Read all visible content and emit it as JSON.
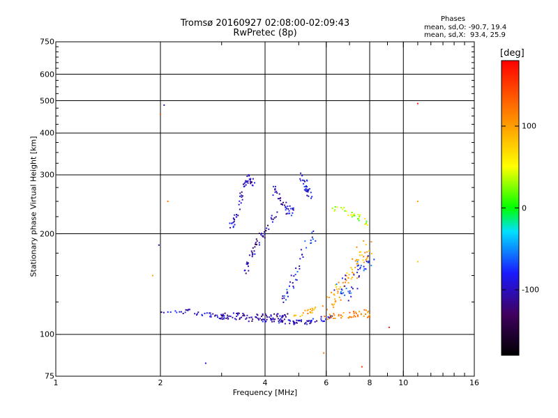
{
  "title_line1": "Tromsø 20160927 02:08:00-02:09:43",
  "title_line2": "RwPretec (8p)",
  "phase_legend": {
    "heading": "Phases",
    "o_line": "mean, sd,O: -90.7, 19.4",
    "x_line": "mean, sd,X:  93.4, 25.9"
  },
  "colorbar": {
    "unit": "[deg]",
    "ticks": [
      "100",
      "0",
      "-100"
    ],
    "tick_values": [
      100,
      0,
      -100
    ],
    "range": [
      -180,
      180
    ],
    "colors": [
      "#000000",
      "#400060",
      "#1a1aff",
      "#00e0ff",
      "#00ff00",
      "#ffff00",
      "#ff8000",
      "#ff0000"
    ]
  },
  "chart_data": {
    "type": "scatter",
    "title": "Tromsø 20160927 02:08:00-02:09:43",
    "subtitle": "RwPretec (8p)",
    "xlabel": "Frequency [MHz]",
    "ylabel": "Stationary phase Virtual Height [km]",
    "x_scale": "log",
    "y_scale": "log",
    "xlim": [
      1,
      16
    ],
    "ylim": [
      75,
      750
    ],
    "x_ticks": [
      "1",
      "2",
      "4",
      "6",
      "8",
      "10",
      "16"
    ],
    "x_tick_values": [
      1,
      2,
      4,
      6,
      8,
      10,
      16
    ],
    "y_ticks": [
      "75",
      "100",
      "200",
      "300",
      "400",
      "500",
      "600",
      "750"
    ],
    "y_tick_values": [
      75,
      100,
      200,
      300,
      400,
      500,
      600,
      750
    ],
    "grid_x": [
      2,
      4,
      6,
      8,
      10
    ],
    "grid_y": [
      100,
      200,
      300,
      400,
      500,
      600
    ],
    "clusters": [
      {
        "trace": [
          [
            2.0,
            117
          ],
          [
            2.4,
            117
          ],
          [
            2.8,
            114
          ],
          [
            3.2,
            112
          ],
          [
            3.8,
            111
          ],
          [
            4.3,
            110
          ],
          [
            4.8,
            109
          ],
          [
            5.3,
            109
          ],
          [
            5.8,
            111
          ],
          [
            6.3,
            113
          ]
        ],
        "spread": 0.015,
        "n": 140,
        "phase": -100
      },
      {
        "trace": [
          [
            3.0,
            114
          ],
          [
            3.6,
            113
          ],
          [
            4.2,
            113
          ],
          [
            4.6,
            113
          ]
        ],
        "spread": 0.02,
        "n": 60,
        "phase": -110
      },
      {
        "trace": [
          [
            3.2,
            210
          ],
          [
            3.3,
            225
          ],
          [
            3.4,
            250
          ],
          [
            3.5,
            280
          ],
          [
            3.6,
            300
          ],
          [
            3.7,
            280
          ]
        ],
        "spread": 0.02,
        "n": 55,
        "phase": -100
      },
      {
        "trace": [
          [
            3.5,
            150
          ],
          [
            3.6,
            165
          ],
          [
            3.7,
            180
          ],
          [
            3.9,
            195
          ],
          [
            4.1,
            210
          ],
          [
            4.3,
            230
          ]
        ],
        "spread": 0.025,
        "n": 50,
        "phase": -110
      },
      {
        "trace": [
          [
            4.2,
            280
          ],
          [
            4.4,
            260
          ],
          [
            4.6,
            240
          ],
          [
            4.8,
            230
          ]
        ],
        "spread": 0.03,
        "n": 40,
        "phase": -95
      },
      {
        "trace": [
          [
            5.0,
            300
          ],
          [
            5.2,
            285
          ],
          [
            5.3,
            270
          ],
          [
            5.4,
            255
          ]
        ],
        "spread": 0.025,
        "n": 30,
        "phase": -90
      },
      {
        "trace": [
          [
            4.4,
            125
          ],
          [
            4.7,
            135
          ],
          [
            5.0,
            160
          ],
          [
            5.3,
            185
          ],
          [
            5.6,
            200
          ]
        ],
        "spread": 0.03,
        "n": 40,
        "phase": -85
      },
      {
        "trace": [
          [
            6.2,
            240
          ],
          [
            6.8,
            235
          ],
          [
            7.4,
            225
          ],
          [
            7.9,
            215
          ]
        ],
        "spread": 0.02,
        "n": 30,
        "phase": 40
      },
      {
        "trace": [
          [
            6.0,
            120
          ],
          [
            6.5,
            135
          ],
          [
            7.0,
            150
          ],
          [
            7.5,
            170
          ],
          [
            8.0,
            185
          ]
        ],
        "spread": 0.05,
        "n": 70,
        "phase": 95
      },
      {
        "trace": [
          [
            6.0,
            112
          ],
          [
            6.6,
            114
          ],
          [
            7.2,
            115
          ],
          [
            7.8,
            116
          ],
          [
            8.1,
            114
          ]
        ],
        "spread": 0.02,
        "n": 45,
        "phase": 110
      },
      {
        "trace": [
          [
            6.5,
            130
          ],
          [
            7.0,
            140
          ],
          [
            7.5,
            155
          ],
          [
            8.0,
            165
          ]
        ],
        "spread": 0.06,
        "n": 45,
        "phase": -80
      },
      {
        "trace": [
          [
            4.8,
            112
          ],
          [
            5.2,
            115
          ],
          [
            5.6,
            118
          ]
        ],
        "spread": 0.02,
        "n": 20,
        "phase": 100
      }
    ],
    "isolated_points": [
      {
        "x": 2.05,
        "y": 485,
        "phase": -110
      },
      {
        "x": 1.98,
        "y": 185,
        "phase": -100
      },
      {
        "x": 2.1,
        "y": 250,
        "phase": 120
      },
      {
        "x": 11.0,
        "y": 490,
        "phase": 170
      },
      {
        "x": 11.0,
        "y": 250,
        "phase": 100
      },
      {
        "x": 11.0,
        "y": 165,
        "phase": 80
      },
      {
        "x": 2.7,
        "y": 82,
        "phase": -100
      },
      {
        "x": 9.1,
        "y": 105,
        "phase": 170
      },
      {
        "x": 1.9,
        "y": 150,
        "phase": 100
      },
      {
        "x": 2.0,
        "y": 455,
        "phase": 140
      },
      {
        "x": 7.6,
        "y": 80,
        "phase": 150
      },
      {
        "x": 5.9,
        "y": 88,
        "phase": 120
      }
    ]
  }
}
